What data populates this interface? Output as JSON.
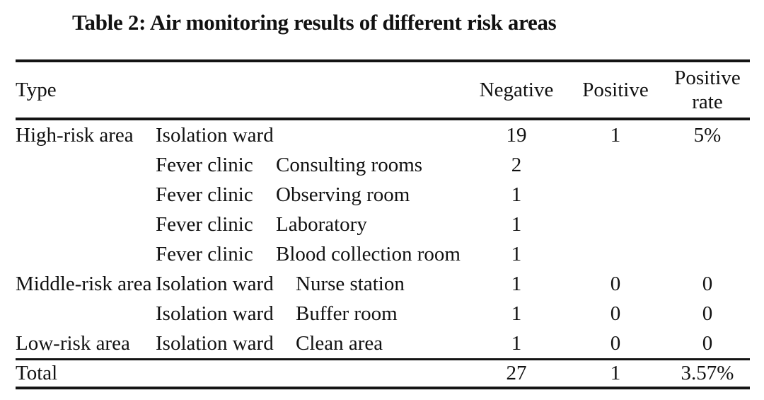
{
  "title": "Table 2: Air monitoring results of different risk areas",
  "table": {
    "header": {
      "type": "Type",
      "negative": "Negative",
      "positive": "Positive",
      "positive_rate_line1": "Positive",
      "positive_rate_line2": "rate"
    },
    "rows": [
      {
        "risk": "High-risk area",
        "location": "Isolation ward",
        "room": "",
        "negative": "19",
        "positive": "1",
        "rate": "5%"
      },
      {
        "risk": "",
        "location": "Fever clinic",
        "room": "Consulting rooms",
        "negative": "2",
        "positive": "",
        "rate": ""
      },
      {
        "risk": "",
        "location": "Fever clinic",
        "room": "Observing room",
        "negative": "1",
        "positive": "",
        "rate": ""
      },
      {
        "risk": "",
        "location": "Fever clinic",
        "room": "Laboratory",
        "negative": "1",
        "positive": "",
        "rate": ""
      },
      {
        "risk": "",
        "location": "Fever clinic",
        "room": "Blood collection room",
        "negative": "1",
        "positive": "",
        "rate": ""
      },
      {
        "risk": "Middle-risk area",
        "location": "Isolation ward",
        "room": "Nurse station",
        "negative": "1",
        "positive": "0",
        "rate": "0"
      },
      {
        "risk": "",
        "location": "Isolation ward",
        "room": "Buffer room",
        "negative": "1",
        "positive": "0",
        "rate": "0"
      },
      {
        "risk": "Low-risk area",
        "location": "Isolation ward",
        "room": "Clean area",
        "negative": "1",
        "positive": "0",
        "rate": "0"
      }
    ],
    "total": {
      "label": "Total",
      "negative": "27",
      "positive": "1",
      "rate": "3.57%"
    }
  },
  "colors": {
    "text": "#111111",
    "rule": "#141414",
    "background": "#ffffff"
  }
}
